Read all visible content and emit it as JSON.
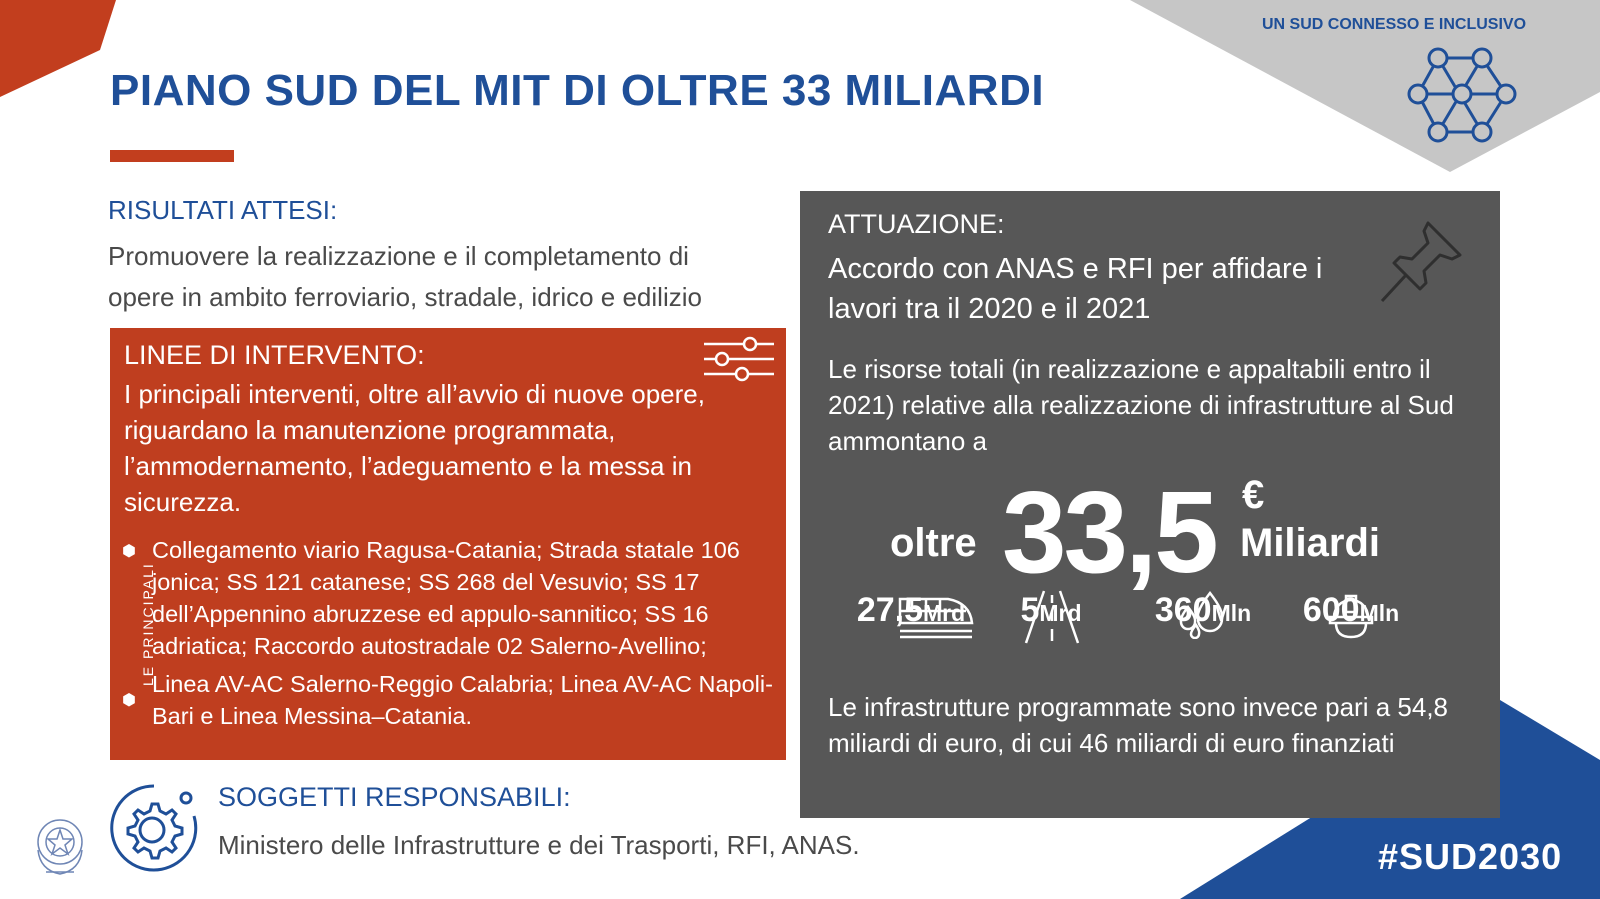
{
  "colors": {
    "brand_blue": "#1f4f98",
    "accent_red": "#bf3e1f",
    "panel_grey": "#575757",
    "corner_grey": "#c6c6c6",
    "text_grey": "#4a4a4a"
  },
  "header": {
    "title": "PIANO SUD DEL MIT DI OLTRE 33 MILIARDI",
    "tagline": "UN SUD CONNESSO E INCLUSIVO",
    "tagline_icon": "network-icon"
  },
  "expected_results": {
    "label": "RISULTATI ATTESI:",
    "text": "Promuovere la realizzazione e il completamento di opere in ambito ferroviario, stradale, idrico e edilizio"
  },
  "intervention_lines": {
    "label": "LINEE DI INTERVENTO:",
    "icon": "sliders-icon",
    "intro": "I principali interventi, oltre all’avvio di nuove opere, riguardano la manutenzione programmata, l’ammodernamento, l’adeguamento e la messa in sicurezza.",
    "side_label": "LE PRINCIPALI",
    "items": [
      "Collegamento viario Ragusa-Catania; Strada statale 106 jonica; SS 121 catanese; SS 268 del Vesuvio; SS 17 dell’Appennino abruzzese ed appulo-sannitico; SS 16 adriatica; Raccordo autostradale 02 Salerno-Avellino;",
      "Linea AV-AC Salerno-Reggio Calabria; Linea AV-AC Napoli-Bari e Linea Messina–Catania."
    ]
  },
  "implementation": {
    "label": "ATTUAZIONE:",
    "icon": "pushpin-icon",
    "agreement": "Accordo con ANAS e RFI per affidare i lavori tra il 2020 e il 2021",
    "resources_text": "Le risorse totali (in realizzazione e appaltabili entro il 2021) relative alla realizzazione di infrastrutture al Sud ammontano a",
    "highlight": {
      "prefix": "oltre",
      "value": "33,5",
      "currency": "€",
      "unit": "Miliardi"
    },
    "stats": [
      {
        "icon": "train-icon",
        "value": "27,5",
        "unit": "Mrd"
      },
      {
        "icon": "road-icon",
        "value": "5",
        "unit": "Mrd"
      },
      {
        "icon": "water-drops-icon",
        "value": "360",
        "unit": "Mln"
      },
      {
        "icon": "helmet-icon",
        "value": "600",
        "unit": "Mln"
      }
    ],
    "planned_text": "Le infrastrutture programmate sono invece pari a 54,8 miliardi di euro, di cui 46 miliardi di euro finanziati"
  },
  "responsible": {
    "label": "SOGGETTI RESPONSABILI:",
    "icon": "gear-icon",
    "text": "Ministero delle Infrastrutture e dei Trasporti, RFI, ANAS."
  },
  "footer": {
    "hashtag": "#SUD2030",
    "emblem": "republic-emblem-icon"
  }
}
